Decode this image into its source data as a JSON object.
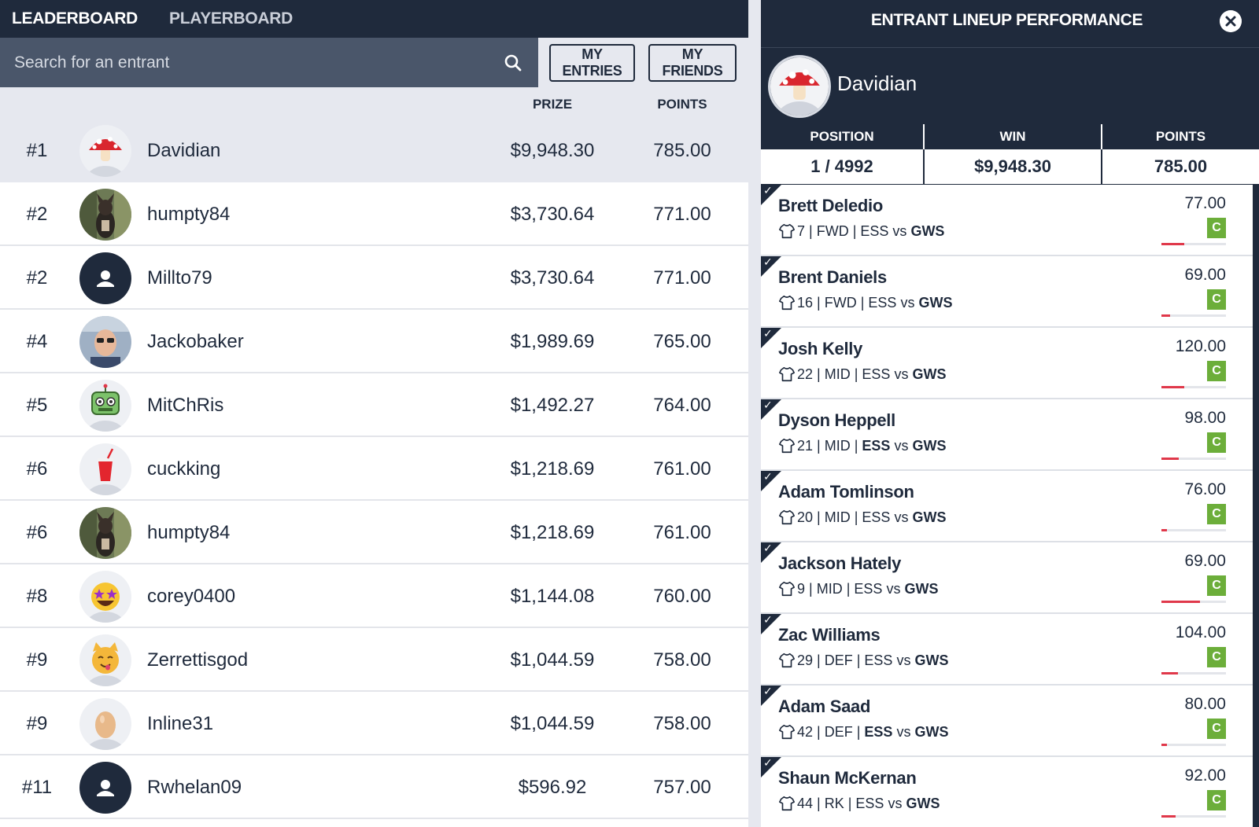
{
  "nav": {
    "tabs": [
      "LEADERBOARD",
      "PLAYERBOARD"
    ]
  },
  "search": {
    "placeholder": "Search for an entrant"
  },
  "filters": {
    "my_entries": "MY ENTRIES",
    "my_friends": "MY FRIENDS"
  },
  "columns": {
    "prize": "PRIZE",
    "points": "POINTS"
  },
  "leaderboard": [
    {
      "rank": "#1",
      "name": "Davidian",
      "prize": "$9,948.30",
      "points": "785.00",
      "avatar": "mushroom-avatar"
    },
    {
      "rank": "#2",
      "name": "humpty84",
      "prize": "$3,730.64",
      "points": "771.00",
      "avatar": "dog-photo-avatar"
    },
    {
      "rank": "#2",
      "name": "Millto79",
      "prize": "$3,730.64",
      "points": "771.00",
      "avatar": "default-avatar"
    },
    {
      "rank": "#4",
      "name": "Jackobaker",
      "prize": "$1,989.69",
      "points": "765.00",
      "avatar": "person-photo-avatar"
    },
    {
      "rank": "#5",
      "name": "MitChRis",
      "prize": "$1,492.27",
      "points": "764.00",
      "avatar": "robot-avatar"
    },
    {
      "rank": "#6",
      "name": "cuckking",
      "prize": "$1,218.69",
      "points": "761.00",
      "avatar": "drink-cup-avatar"
    },
    {
      "rank": "#6",
      "name": "humpty84",
      "prize": "$1,218.69",
      "points": "761.00",
      "avatar": "dog-photo-avatar"
    },
    {
      "rank": "#8",
      "name": "corey0400",
      "prize": "$1,144.08",
      "points": "760.00",
      "avatar": "star-struck-avatar"
    },
    {
      "rank": "#9",
      "name": "Zerrettisgod",
      "prize": "$1,044.59",
      "points": "758.00",
      "avatar": "cat-avatar"
    },
    {
      "rank": "#9",
      "name": "Inline31",
      "prize": "$1,044.59",
      "points": "758.00",
      "avatar": "egg-avatar"
    },
    {
      "rank": "#11",
      "name": "Rwhelan09",
      "prize": "$596.92",
      "points": "757.00",
      "avatar": "default-avatar"
    }
  ],
  "panel": {
    "title": "ENTRANT LINEUP PERFORMANCE",
    "username": "Davidian",
    "stats": {
      "position_label": "POSITION",
      "position": "1 / 4992",
      "win_label": "WIN",
      "win": "$9,948.30",
      "points_label": "POINTS",
      "points": "785.00"
    },
    "players": [
      {
        "name": "Brett Deledio",
        "number": "7",
        "pos": "FWD",
        "team": "ESS",
        "vs": "vs",
        "opp": "GWS",
        "points": "77.00",
        "badge": "C",
        "progress": 0.35,
        "bold_team": false
      },
      {
        "name": "Brent Daniels",
        "number": "16",
        "pos": "FWD",
        "team": "ESS",
        "vs": "vs",
        "opp": "GWS",
        "points": "69.00",
        "badge": "C",
        "progress": 0.13,
        "bold_team": false
      },
      {
        "name": "Josh Kelly",
        "number": "22",
        "pos": "MID",
        "team": "ESS",
        "vs": "vs",
        "opp": "GWS",
        "points": "120.00",
        "badge": "C",
        "progress": 0.35,
        "bold_team": false
      },
      {
        "name": "Dyson Heppell",
        "number": "21",
        "pos": "MID",
        "team": "ESS",
        "vs": "vs",
        "opp": "GWS",
        "points": "98.00",
        "badge": "C",
        "progress": 0.27,
        "bold_team": true
      },
      {
        "name": "Adam Tomlinson",
        "number": "20",
        "pos": "MID",
        "team": "ESS",
        "vs": "vs",
        "opp": "GWS",
        "points": "76.00",
        "badge": "C",
        "progress": 0.08,
        "bold_team": false
      },
      {
        "name": "Jackson Hately",
        "number": "9",
        "pos": "MID",
        "team": "ESS",
        "vs": "vs",
        "opp": "GWS",
        "points": "69.00",
        "badge": "C",
        "progress": 0.6,
        "bold_team": false
      },
      {
        "name": "Zac Williams",
        "number": "29",
        "pos": "DEF",
        "team": "ESS",
        "vs": "vs",
        "opp": "GWS",
        "points": "104.00",
        "badge": "C",
        "progress": 0.25,
        "bold_team": false
      },
      {
        "name": "Adam Saad",
        "number": "42",
        "pos": "DEF",
        "team": "ESS",
        "vs": "vs",
        "opp": "GWS",
        "points": "80.00",
        "badge": "C",
        "progress": 0.08,
        "bold_team": true
      },
      {
        "name": "Shaun McKernan",
        "number": "44",
        "pos": "RK",
        "team": "ESS",
        "vs": "vs",
        "opp": "GWS",
        "points": "92.00",
        "badge": "C",
        "progress": 0.22,
        "bold_team": false
      }
    ]
  },
  "colors": {
    "navy": "#1f2a3c",
    "search_bg": "#4a566a",
    "badge_green": "#6cae3a",
    "bar_red": "#e0384a",
    "highlight_row": "#e6e8ef"
  }
}
